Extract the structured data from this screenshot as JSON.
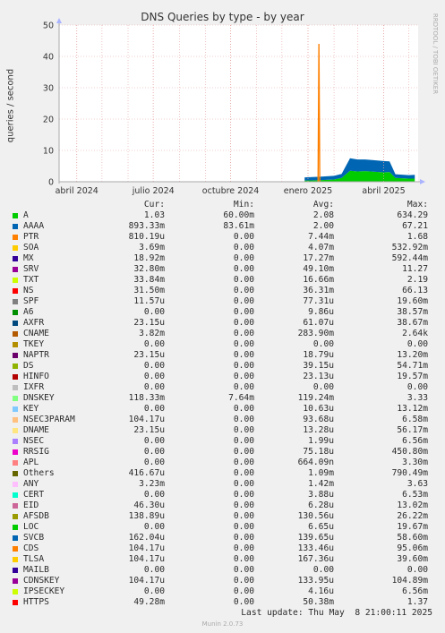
{
  "chart_data": {
    "type": "area",
    "title": "DNS Queries by type - by year",
    "ylabel": "queries / second",
    "ylim": [
      0,
      50
    ],
    "yticks": [
      0,
      10,
      20,
      30,
      40,
      50
    ],
    "xticks": [
      "abril 2024",
      "julio 2024",
      "octubre 2024",
      "enero 2025",
      "abril 2025"
    ],
    "grid": true,
    "stacked": true,
    "series": [
      {
        "name": "A",
        "color": "#00cc00",
        "x": [
          "2024-12-28",
          "2025-01-15",
          "2025-02-01",
          "2025-02-10",
          "2025-02-20",
          "2025-03-01",
          "2025-03-10",
          "2025-03-20",
          "2025-04-01",
          "2025-04-08",
          "2025-04-15",
          "2025-05-01",
          "2025-05-08"
        ],
        "y": [
          0.4,
          0.5,
          0.7,
          1.2,
          3.5,
          3.3,
          3.4,
          3.2,
          3.0,
          3.1,
          1.2,
          1.0,
          1.0
        ]
      },
      {
        "name": "AAAA",
        "color": "#0066b3",
        "x": [
          "2024-12-28",
          "2025-01-15",
          "2025-02-01",
          "2025-02-10",
          "2025-02-20",
          "2025-03-01",
          "2025-03-10",
          "2025-03-20",
          "2025-04-01",
          "2025-04-08",
          "2025-04-15",
          "2025-05-01",
          "2025-05-08"
        ],
        "y": [
          1.0,
          1.1,
          1.2,
          1.3,
          4.0,
          3.8,
          3.7,
          3.7,
          3.6,
          3.4,
          1.2,
          1.1,
          1.2
        ]
      },
      {
        "name": "PTR",
        "color": "#ff8000",
        "x": [
          "2025-01-13",
          "2025-01-14",
          "2025-01-15"
        ],
        "y": [
          0,
          42,
          0
        ]
      }
    ]
  },
  "legend": {
    "headers": {
      "cur": "Cur:",
      "min": "Min:",
      "avg": "Avg:",
      "max": "Max:"
    },
    "rows": [
      {
        "name": "A",
        "color": "#00cc00",
        "cur": "1.03",
        "min": "60.00m",
        "avg": "2.08",
        "max": "634.29"
      },
      {
        "name": "AAAA",
        "color": "#0066b3",
        "cur": "893.33m",
        "min": "83.61m",
        "avg": "2.00",
        "max": "67.21"
      },
      {
        "name": "PTR",
        "color": "#ff8000",
        "cur": "810.19u",
        "min": "0.00",
        "avg": "7.44m",
        "max": "1.68"
      },
      {
        "name": "SOA",
        "color": "#ffcc00",
        "cur": "3.69m",
        "min": "0.00",
        "avg": "4.07m",
        "max": "532.92m"
      },
      {
        "name": "MX",
        "color": "#330099",
        "cur": "18.92m",
        "min": "0.00",
        "avg": "17.27m",
        "max": "592.44m"
      },
      {
        "name": "SRV",
        "color": "#990099",
        "cur": "32.80m",
        "min": "0.00",
        "avg": "49.10m",
        "max": "11.27"
      },
      {
        "name": "TXT",
        "color": "#ccff00",
        "cur": "33.84m",
        "min": "0.00",
        "avg": "16.66m",
        "max": "2.19"
      },
      {
        "name": "NS",
        "color": "#ff0000",
        "cur": "31.50m",
        "min": "0.00",
        "avg": "36.31m",
        "max": "66.13"
      },
      {
        "name": "SPF",
        "color": "#808080",
        "cur": "11.57u",
        "min": "0.00",
        "avg": "77.31u",
        "max": "19.60m"
      },
      {
        "name": "A6",
        "color": "#008f00",
        "cur": "0.00",
        "min": "0.00",
        "avg": "9.86u",
        "max": "38.57m"
      },
      {
        "name": "AXFR",
        "color": "#00487d",
        "cur": "23.15u",
        "min": "0.00",
        "avg": "61.07u",
        "max": "38.67m"
      },
      {
        "name": "CNAME",
        "color": "#b35a00",
        "cur": "3.82m",
        "min": "0.00",
        "avg": "283.90m",
        "max": "2.64k"
      },
      {
        "name": "TKEY",
        "color": "#b38f00",
        "cur": "0.00",
        "min": "0.00",
        "avg": "0.00",
        "max": "0.00"
      },
      {
        "name": "NAPTR",
        "color": "#6b006b",
        "cur": "23.15u",
        "min": "0.00",
        "avg": "18.79u",
        "max": "13.20m"
      },
      {
        "name": "DS",
        "color": "#8fb300",
        "cur": "0.00",
        "min": "0.00",
        "avg": "39.15u",
        "max": "54.71m"
      },
      {
        "name": "HINFO",
        "color": "#b30000",
        "cur": "0.00",
        "min": "0.00",
        "avg": "23.13u",
        "max": "19.57m"
      },
      {
        "name": "IXFR",
        "color": "#bebebe",
        "cur": "0.00",
        "min": "0.00",
        "avg": "0.00",
        "max": "0.00"
      },
      {
        "name": "DNSKEY",
        "color": "#80ff80",
        "cur": "118.33m",
        "min": "7.64m",
        "avg": "119.24m",
        "max": "3.33"
      },
      {
        "name": "KEY",
        "color": "#80c9ff",
        "cur": "0.00",
        "min": "0.00",
        "avg": "10.63u",
        "max": "13.12m"
      },
      {
        "name": "NSEC3PARAM",
        "color": "#ffc080",
        "cur": "104.17u",
        "min": "0.00",
        "avg": "93.68u",
        "max": "6.58m"
      },
      {
        "name": "DNAME",
        "color": "#ffe680",
        "cur": "23.15u",
        "min": "0.00",
        "avg": "13.28u",
        "max": "56.17m"
      },
      {
        "name": "NSEC",
        "color": "#aa80ff",
        "cur": "0.00",
        "min": "0.00",
        "avg": "1.99u",
        "max": "6.56m"
      },
      {
        "name": "RRSIG",
        "color": "#ee00cc",
        "cur": "0.00",
        "min": "0.00",
        "avg": "75.18u",
        "max": "450.80m"
      },
      {
        "name": "APL",
        "color": "#ff8080",
        "cur": "0.00",
        "min": "0.00",
        "avg": "664.09n",
        "max": "3.30m"
      },
      {
        "name": "Others",
        "color": "#666600",
        "cur": "416.67u",
        "min": "0.00",
        "avg": "1.09m",
        "max": "790.49m"
      },
      {
        "name": "ANY",
        "color": "#ffbfff",
        "cur": "3.23m",
        "min": "0.00",
        "avg": "1.42m",
        "max": "3.63"
      },
      {
        "name": "CERT",
        "color": "#00ffcc",
        "cur": "0.00",
        "min": "0.00",
        "avg": "3.88u",
        "max": "6.53m"
      },
      {
        "name": "EID",
        "color": "#cc6699",
        "cur": "46.30u",
        "min": "0.00",
        "avg": "6.28u",
        "max": "13.02m"
      },
      {
        "name": "AFSDB",
        "color": "#999900",
        "cur": "138.89u",
        "min": "0.00",
        "avg": "130.56u",
        "max": "26.22m"
      },
      {
        "name": "LOC",
        "color": "#00cc00",
        "cur": "0.00",
        "min": "0.00",
        "avg": "6.65u",
        "max": "19.67m"
      },
      {
        "name": "SVCB",
        "color": "#0066b3",
        "cur": "162.04u",
        "min": "0.00",
        "avg": "139.65u",
        "max": "58.60m"
      },
      {
        "name": "CDS",
        "color": "#ff8000",
        "cur": "104.17u",
        "min": "0.00",
        "avg": "133.46u",
        "max": "95.06m"
      },
      {
        "name": "TLSA",
        "color": "#ffcc00",
        "cur": "104.17u",
        "min": "0.00",
        "avg": "167.36u",
        "max": "39.60m"
      },
      {
        "name": "MAILB",
        "color": "#330099",
        "cur": "0.00",
        "min": "0.00",
        "avg": "0.00",
        "max": "0.00"
      },
      {
        "name": "CDNSKEY",
        "color": "#990099",
        "cur": "104.17u",
        "min": "0.00",
        "avg": "133.95u",
        "max": "104.89m"
      },
      {
        "name": "IPSECKEY",
        "color": "#ccff00",
        "cur": "0.00",
        "min": "0.00",
        "avg": "4.16u",
        "max": "6.56m"
      },
      {
        "name": "HTTPS",
        "color": "#ff0000",
        "cur": "49.28m",
        "min": "0.00",
        "avg": "50.38m",
        "max": "1.37"
      }
    ]
  },
  "vendor_label": "RRDTOOL / TOBI OETIKER",
  "footer": {
    "last_update": "Last update: Thu May  8 21:00:11 2025",
    "munin": "Munin 2.0.73"
  }
}
